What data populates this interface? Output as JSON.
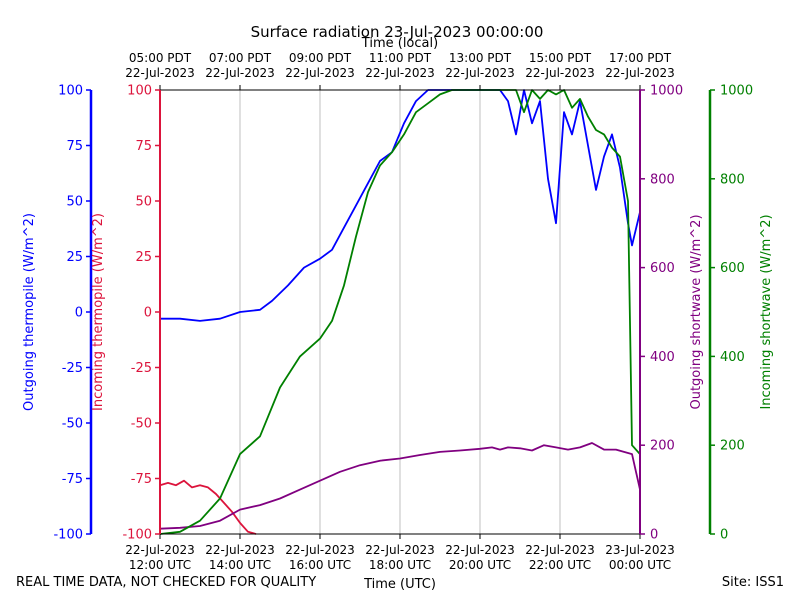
{
  "chart_data": {
    "type": "line",
    "title": "Surface radiation 23-Jul-2023 00:00:00",
    "top_axis_label": "Time (local)",
    "bottom_axis_label": "Time (UTC)",
    "x_range_hours_utc": [
      12.0,
      24.0
    ],
    "x_ticks": [
      {
        "hour": 12,
        "utc": [
          "22-Jul-2023",
          "12:00 UTC"
        ],
        "local": [
          "05:00 PDT",
          "22-Jul-2023"
        ]
      },
      {
        "hour": 14,
        "utc": [
          "22-Jul-2023",
          "14:00 UTC"
        ],
        "local": [
          "07:00 PDT",
          "22-Jul-2023"
        ]
      },
      {
        "hour": 16,
        "utc": [
          "22-Jul-2023",
          "16:00 UTC"
        ],
        "local": [
          "09:00 PDT",
          "22-Jul-2023"
        ]
      },
      {
        "hour": 18,
        "utc": [
          "22-Jul-2023",
          "18:00 UTC"
        ],
        "local": [
          "11:00 PDT",
          "22-Jul-2023"
        ]
      },
      {
        "hour": 20,
        "utc": [
          "22-Jul-2023",
          "20:00 UTC"
        ],
        "local": [
          "13:00 PDT",
          "22-Jul-2023"
        ]
      },
      {
        "hour": 22,
        "utc": [
          "22-Jul-2023",
          "22:00 UTC"
        ],
        "local": [
          "15:00 PDT",
          "22-Jul-2023"
        ]
      },
      {
        "hour": 24,
        "utc": [
          "23-Jul-2023",
          "00:00 UTC"
        ],
        "local": [
          "17:00 PDT",
          "22-Jul-2023"
        ]
      }
    ],
    "axes": {
      "outgoing_thermopile": {
        "label": "Outgoing thermopile (W/m^2)",
        "color": "#0000ff",
        "ylim": [
          -100,
          100
        ],
        "ticks": [
          -100,
          -75,
          -50,
          -25,
          0,
          25,
          50,
          75,
          100
        ]
      },
      "incoming_thermopile": {
        "label": "Incoming thermopile (W/m^2)",
        "color": "#dc143c",
        "ylim": [
          -100,
          100
        ],
        "ticks": [
          -100,
          -75,
          -50,
          -25,
          0,
          25,
          50,
          75,
          100
        ]
      },
      "outgoing_shortwave": {
        "label": "Outgoing shortwave (W/m^2)",
        "color": "#800080",
        "ylim": [
          0,
          1000
        ],
        "ticks": [
          0,
          200,
          400,
          600,
          800,
          1000
        ]
      },
      "incoming_shortwave": {
        "label": "Incoming shortwave (W/m^2)",
        "color": "#008000",
        "ylim": [
          0,
          1000
        ],
        "ticks": [
          0,
          200,
          400,
          600,
          800,
          1000
        ]
      }
    },
    "series": [
      {
        "name": "Outgoing thermopile",
        "axis": "outgoing_thermopile",
        "color": "#0000ff",
        "x": [
          12.0,
          12.5,
          13.0,
          13.5,
          14.0,
          14.5,
          14.8,
          15.2,
          15.6,
          16.0,
          16.3,
          16.6,
          16.9,
          17.2,
          17.5,
          17.8,
          18.1,
          18.4,
          18.7,
          19.0,
          19.3,
          19.6,
          19.9,
          20.1,
          20.3,
          20.5,
          20.7,
          20.9,
          21.1,
          21.3,
          21.5,
          21.7,
          21.9,
          22.1,
          22.3,
          22.5,
          22.7,
          22.9,
          23.1,
          23.3,
          23.5,
          23.7,
          23.8,
          24.0
        ],
        "y": [
          -3,
          -3,
          -4,
          -3,
          0,
          1,
          5,
          12,
          20,
          24,
          28,
          38,
          48,
          58,
          68,
          72,
          85,
          95,
          100,
          100,
          100,
          100,
          100,
          100,
          100,
          100,
          95,
          80,
          100,
          85,
          95,
          60,
          40,
          90,
          80,
          95,
          75,
          55,
          70,
          80,
          65,
          40,
          30,
          45
        ]
      },
      {
        "name": "Incoming thermopile",
        "axis": "incoming_thermopile",
        "color": "#dc143c",
        "x": [
          12.0,
          12.2,
          12.4,
          12.6,
          12.8,
          13.0,
          13.2,
          13.4,
          13.6,
          13.8,
          14.0,
          14.2,
          14.4
        ],
        "y": [
          -78,
          -77,
          -78,
          -76,
          -79,
          -78,
          -79,
          -82,
          -86,
          -90,
          -95,
          -99,
          -100
        ]
      },
      {
        "name": "Outgoing shortwave",
        "axis": "outgoing_shortwave",
        "color": "#800080",
        "x": [
          12.0,
          12.5,
          13.0,
          13.5,
          14.0,
          14.5,
          15.0,
          15.5,
          16.0,
          16.5,
          17.0,
          17.5,
          18.0,
          18.5,
          19.0,
          19.5,
          20.0,
          20.3,
          20.5,
          20.7,
          21.0,
          21.3,
          21.6,
          21.9,
          22.2,
          22.5,
          22.8,
          23.1,
          23.4,
          23.6,
          23.8,
          24.0
        ],
        "y": [
          12,
          14,
          18,
          30,
          55,
          65,
          80,
          100,
          120,
          140,
          155,
          165,
          170,
          178,
          185,
          188,
          192,
          195,
          190,
          195,
          193,
          188,
          200,
          195,
          190,
          195,
          205,
          190,
          190,
          185,
          180,
          100
        ]
      },
      {
        "name": "Incoming shortwave",
        "axis": "incoming_shortwave",
        "color": "#008000",
        "x": [
          12.0,
          12.5,
          13.0,
          13.5,
          14.0,
          14.5,
          15.0,
          15.5,
          16.0,
          16.3,
          16.6,
          16.9,
          17.2,
          17.5,
          17.8,
          18.1,
          18.4,
          18.7,
          19.0,
          19.3,
          19.6,
          19.9,
          20.1,
          20.3,
          20.5,
          20.7,
          20.9,
          21.1,
          21.3,
          21.5,
          21.7,
          21.9,
          22.1,
          22.3,
          22.5,
          22.7,
          22.9,
          23.1,
          23.3,
          23.5,
          23.7,
          23.8,
          24.0
        ],
        "y": [
          0,
          5,
          30,
          80,
          180,
          220,
          330,
          400,
          440,
          480,
          560,
          670,
          770,
          830,
          860,
          900,
          950,
          970,
          990,
          1000,
          1000,
          1000,
          1000,
          1000,
          1000,
          1000,
          1000,
          950,
          1000,
          980,
          1000,
          990,
          1000,
          960,
          980,
          940,
          910,
          900,
          870,
          850,
          750,
          200,
          180
        ]
      }
    ]
  },
  "footer": {
    "left_note": "REAL TIME DATA, NOT CHECKED FOR QUALITY",
    "site": "Site: ISS1"
  }
}
